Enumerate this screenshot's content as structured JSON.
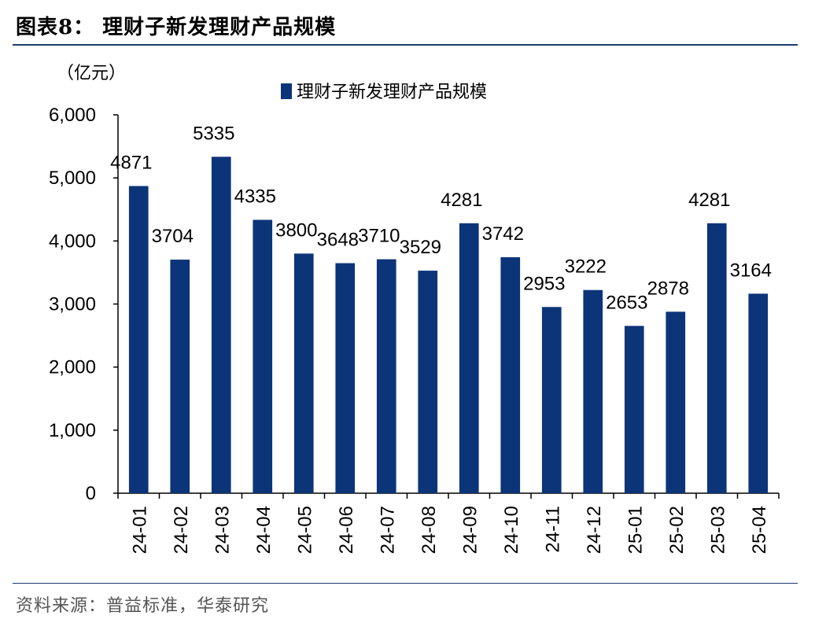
{
  "header": {
    "title": "图表8：  理财子新发理财产品规模"
  },
  "source": "资料来源：普益标准，华泰研究",
  "chart_data": {
    "type": "bar",
    "unit_label": "（亿元）",
    "legend": {
      "entry": "理财子新发理财产品规模",
      "position": "top-center"
    },
    "categories": [
      "24-01",
      "24-02",
      "24-03",
      "24-04",
      "24-05",
      "24-06",
      "24-07",
      "24-08",
      "24-09",
      "24-10",
      "24-11",
      "24-12",
      "25-01",
      "25-02",
      "25-03",
      "25-04"
    ],
    "series": [
      {
        "name": "理财子新发理财产品规模",
        "values": [
          4871,
          3704,
          5335,
          4335,
          3800,
          3648,
          3710,
          3529,
          4281,
          3742,
          2953,
          3222,
          2653,
          2878,
          4281,
          3164
        ]
      }
    ],
    "ylim": [
      0,
      6000
    ],
    "yticks": [
      0,
      1000,
      2000,
      3000,
      4000,
      5000,
      6000
    ],
    "ytick_labels": [
      "0",
      "1,000",
      "2,000",
      "3,000",
      "4,000",
      "5,000",
      "6,000"
    ],
    "grid": false,
    "bar_color": "#0c3478"
  }
}
